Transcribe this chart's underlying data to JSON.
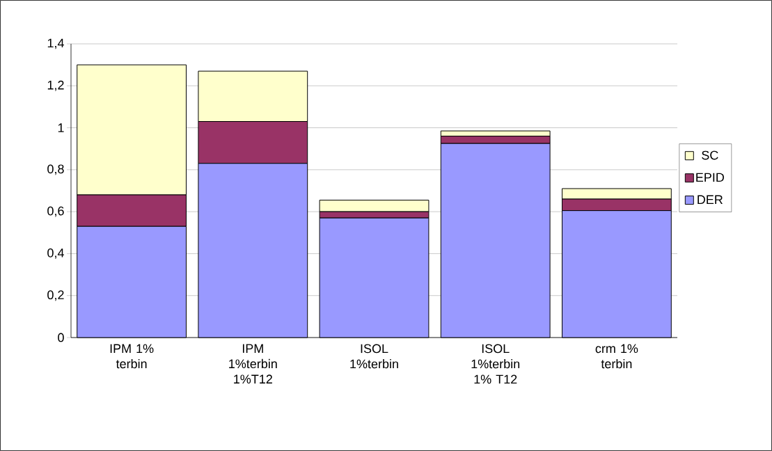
{
  "chart_data": {
    "type": "bar",
    "stacked": true,
    "categories": [
      "IPM 1% terbin",
      "IPM 1%terbin 1%T12",
      "ISOL 1%terbin",
      "ISOL 1%terbin 1% T12",
      "crm 1% terbin"
    ],
    "series": [
      {
        "name": "DER",
        "color": "#9999ff",
        "values": [
          0.53,
          0.83,
          0.57,
          0.925,
          0.605
        ]
      },
      {
        "name": "EPID",
        "color": "#993366",
        "values": [
          0.15,
          0.2,
          0.03,
          0.035,
          0.055
        ]
      },
      {
        "name": "SC",
        "color": "#ffffcc",
        "values": [
          0.62,
          0.24,
          0.055,
          0.025,
          0.05
        ]
      }
    ],
    "ylim": [
      0,
      1.4
    ],
    "yticks": [
      0,
      {
        "value": 0.2,
        "label": "0,2"
      },
      {
        "value": 0.4,
        "label": "0,4"
      },
      {
        "value": 0.6,
        "label": "0,6"
      },
      {
        "value": 0.8,
        "label": "0,8"
      },
      {
        "value": 1,
        "label": "1"
      },
      {
        "value": 1.2,
        "label": "1,2"
      },
      {
        "value": 1.4,
        "label": "1,4"
      }
    ],
    "grid": "y",
    "legend": "right"
  }
}
